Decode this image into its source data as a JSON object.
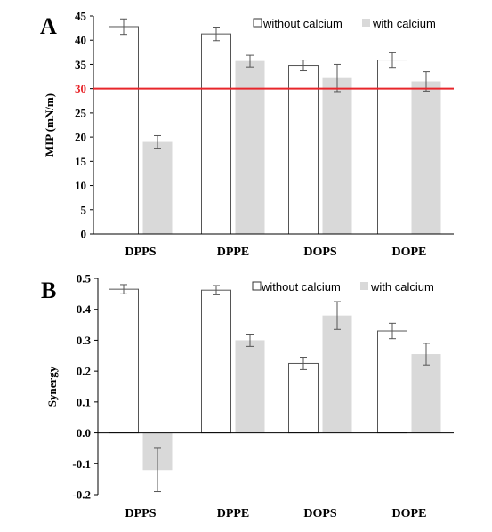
{
  "chart_data": [
    {
      "panel_label": "A",
      "type": "bar",
      "categories": [
        "DPPS",
        "DPPE",
        "DOPS",
        "DOPE"
      ],
      "ylabel": "MIP (mN/m)",
      "ylim": [
        0,
        45
      ],
      "yticks": [
        0,
        5,
        10,
        15,
        20,
        25,
        30,
        35,
        40,
        45
      ],
      "grid": false,
      "legend_position": "top-right",
      "series": [
        {
          "name": "without calcium",
          "values": [
            42.8,
            41.3,
            34.8,
            35.9
          ],
          "errors": [
            1.6,
            1.4,
            1.1,
            1.5
          ],
          "color": "#ffffff"
        },
        {
          "name": "with calcium",
          "values": [
            19.0,
            35.7,
            32.2,
            31.5
          ],
          "errors": [
            1.3,
            1.2,
            2.8,
            2.0
          ],
          "color": "#d9d9d9"
        }
      ],
      "reference_line": {
        "value": 30,
        "label": "30",
        "color": "#e8262b"
      }
    },
    {
      "panel_label": "B",
      "type": "bar",
      "categories": [
        "DPPS",
        "DPPE",
        "DOPS",
        "DOPE"
      ],
      "ylabel": "Synergy",
      "ylim": [
        -0.2,
        0.5
      ],
      "yticks": [
        -0.2,
        -0.1,
        0,
        0.1,
        0.2,
        0.3,
        0.4,
        0.5
      ],
      "grid": false,
      "legend_position": "top-right",
      "series": [
        {
          "name": "without calcium",
          "values": [
            0.465,
            0.462,
            0.225,
            0.33
          ],
          "errors": [
            0.015,
            0.015,
            0.02,
            0.025
          ],
          "color": "#ffffff"
        },
        {
          "name": "with calcium",
          "values": [
            -0.12,
            0.3,
            0.38,
            0.255
          ],
          "errors": [
            0.07,
            0.02,
            0.045,
            0.035
          ],
          "color": "#d9d9d9"
        }
      ]
    }
  ]
}
